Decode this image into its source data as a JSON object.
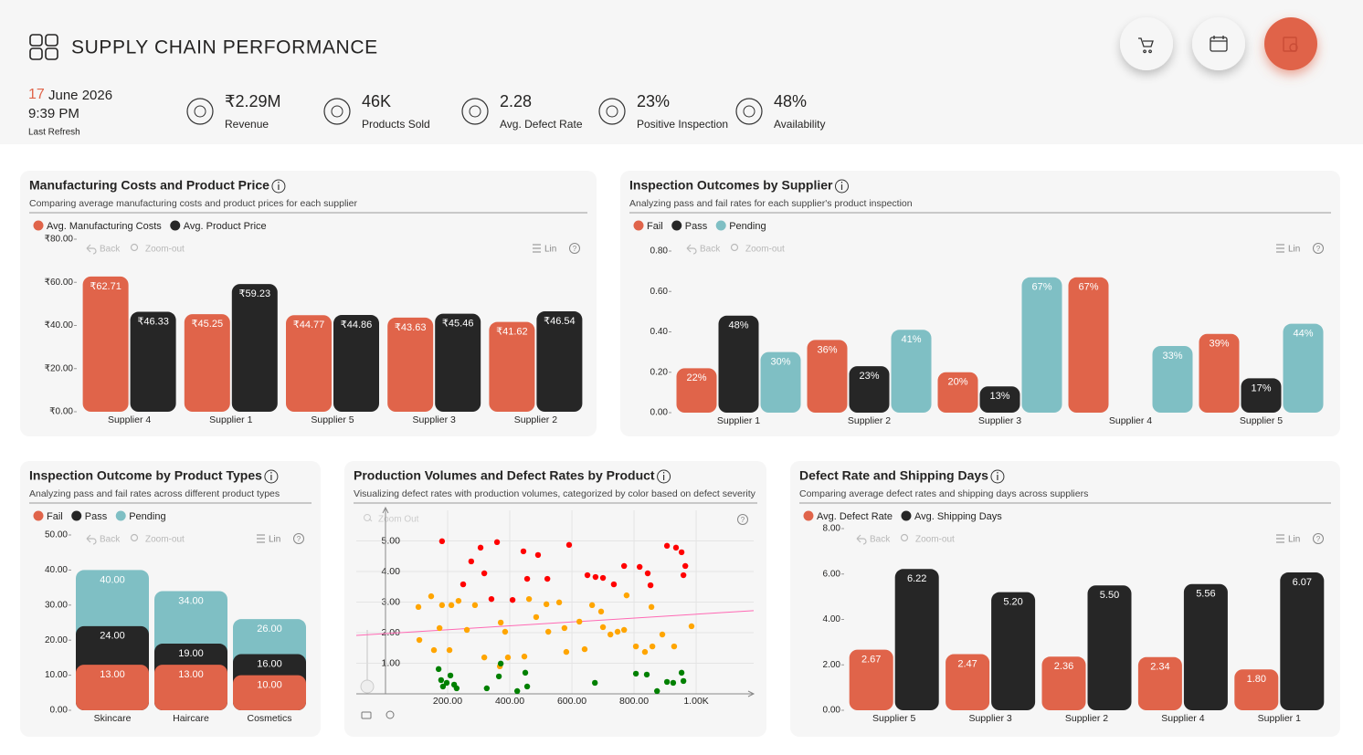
{
  "header": {
    "title": "SUPPLY CHAIN PERFORMANCE",
    "day": "17",
    "month_year": "June 2026",
    "time": "9:39 PM",
    "refresh_label": "Last Refresh"
  },
  "kpis": [
    {
      "value": "₹2.29M",
      "label": "Revenue"
    },
    {
      "value": "46K",
      "label": "Products Sold"
    },
    {
      "value": "2.28",
      "label": "Avg. Defect Rate"
    },
    {
      "value": "23%",
      "label": "Positive Inspection"
    },
    {
      "value": "48%",
      "label": "Availability"
    }
  ],
  "toolbar": {
    "back": "Back",
    "zoom_out": "Zoom-out",
    "lin": "Lin",
    "help": "?",
    "scatter_zoom_out": "Zoom Out"
  },
  "chart_data": [
    {
      "type": "bar",
      "title": "Manufacturing Costs and Product Price",
      "subtitle": "Comparing average manufacturing costs and product prices for each supplier",
      "categories": [
        "Supplier 4",
        "Supplier 1",
        "Supplier 5",
        "Supplier 3",
        "Supplier 2"
      ],
      "series": [
        {
          "name": "Avg. Manufacturing Costs",
          "color": "#e0644a",
          "values": [
            62.71,
            45.25,
            44.77,
            43.63,
            41.62
          ],
          "value_labels": [
            "₹62.71",
            "₹45.25",
            "₹44.77",
            "₹43.63",
            "₹41.62"
          ]
        },
        {
          "name": "Avg. Product Price",
          "color": "#262626",
          "values": [
            46.33,
            59.23,
            44.86,
            45.46,
            46.54
          ],
          "value_labels": [
            "₹46.33",
            "₹59.23",
            "₹44.86",
            "₹45.46",
            "₹46.54"
          ]
        }
      ],
      "ylim": [
        0,
        80
      ],
      "yticks": [
        {
          "value": 0,
          "label": "₹0.00"
        },
        {
          "value": 20,
          "label": "₹20.00"
        },
        {
          "value": 40,
          "label": "₹40.00"
        },
        {
          "value": 60,
          "label": "₹60.00"
        },
        {
          "value": 80,
          "label": "₹80.00"
        }
      ],
      "legend": "top-left"
    },
    {
      "type": "bar",
      "title": "Inspection Outcomes by Supplier",
      "subtitle": "Analyzing pass and fail rates for each supplier's product inspection",
      "categories": [
        "Supplier 1",
        "Supplier 2",
        "Supplier 3",
        "Supplier 4",
        "Supplier 5"
      ],
      "series": [
        {
          "name": "Fail",
          "color": "#e0644a",
          "values": [
            0.22,
            0.36,
            0.2,
            0.67,
            0.39
          ],
          "value_labels": [
            "22%",
            "36%",
            "20%",
            "67%",
            "39%"
          ]
        },
        {
          "name": "Pass",
          "color": "#262626",
          "values": [
            0.48,
            0.23,
            0.13,
            null,
            0.17
          ],
          "value_labels": [
            "48%",
            "23%",
            "13%",
            null,
            "17%"
          ]
        },
        {
          "name": "Pending",
          "color": "#7fbfc4",
          "values": [
            0.3,
            0.41,
            0.67,
            0.33,
            0.44
          ],
          "value_labels": [
            "30%",
            "41%",
            "67%",
            "33%",
            "44%"
          ]
        }
      ],
      "ylim": [
        0,
        0.8
      ],
      "yticks": [
        {
          "value": 0,
          "label": "0.00"
        },
        {
          "value": 0.2,
          "label": "0.20"
        },
        {
          "value": 0.4,
          "label": "0.40"
        },
        {
          "value": 0.6,
          "label": "0.60"
        },
        {
          "value": 0.8,
          "label": "0.80"
        }
      ],
      "legend": "top-left"
    },
    {
      "type": "overlap_bar",
      "title": "Inspection Outcome by Product Types",
      "subtitle": "Analyzing pass and fail rates across different product types",
      "categories": [
        "Skincare",
        "Haircare",
        "Cosmetics"
      ],
      "series": [
        {
          "name": "Fail",
          "color": "#e0644a",
          "values": [
            13,
            13,
            10
          ],
          "value_labels": [
            "13.00",
            "13.00",
            "10.00"
          ]
        },
        {
          "name": "Pass",
          "color": "#262626",
          "values": [
            24,
            19,
            16
          ],
          "value_labels": [
            "24.00",
            "19.00",
            "16.00"
          ]
        },
        {
          "name": "Pending",
          "color": "#7fbfc4",
          "values": [
            40,
            34,
            26
          ],
          "value_labels": [
            "40.00",
            "34.00",
            "26.00"
          ]
        }
      ],
      "ylim": [
        0,
        50
      ],
      "yticks": [
        {
          "value": 0,
          "label": "0.00"
        },
        {
          "value": 10,
          "label": "10.00"
        },
        {
          "value": 20,
          "label": "20.00"
        },
        {
          "value": 30,
          "label": "30.00"
        },
        {
          "value": 40,
          "label": "40.00"
        },
        {
          "value": 50,
          "label": "50.00"
        }
      ],
      "legend": "top-left"
    },
    {
      "type": "scatter",
      "title": "Production Volumes and Defect Rates by Product",
      "subtitle": "Visualizing defect rates with production volumes, categorized by color based on defect severity",
      "series": [
        {
          "color": "#ff0000",
          "x": [
            182,
            306,
            359,
            444,
            491,
            591,
            250,
            318,
            456,
            521,
            341,
            409,
            650,
            676,
            700,
            735,
            818,
            844,
            853,
            906,
            935,
            953,
            965,
            959,
            276,
            768
          ],
          "y": [
            4.99,
            4.78,
            4.96,
            4.66,
            4.54,
            4.87,
            3.58,
            3.94,
            3.76,
            3.76,
            3.1,
            3.07,
            3.88,
            3.82,
            3.79,
            3.58,
            4.15,
            3.94,
            3.55,
            4.84,
            4.78,
            4.63,
            4.18,
            3.88,
            4.33,
            4.18
          ]
        },
        {
          "color": "#ffa500",
          "x": [
            106,
            147,
            182,
            212,
            288,
            174,
            262,
            109,
            156,
            206,
            371,
            385,
            394,
            447,
            368,
            462,
            485,
            518,
            559,
            576,
            582,
            641,
            624,
            694,
            700,
            724,
            747,
            768,
            776,
            806,
            835,
            859,
            929,
            985,
            856,
            891,
            524,
            665,
            235,
            318
          ],
          "y": [
            2.84,
            3.19,
            2.9,
            2.9,
            2.9,
            2.15,
            2.09,
            1.76,
            1.43,
            1.43,
            2.33,
            2.03,
            1.19,
            1.22,
            0.9,
            3.1,
            2.51,
            2.93,
            2.99,
            2.15,
            1.37,
            1.46,
            2.36,
            2.69,
            2.18,
            1.94,
            2.03,
            2.09,
            3.22,
            1.55,
            1.37,
            1.55,
            1.55,
            2.21,
            2.84,
            1.94,
            2.03,
            2.9,
            3.04,
            1.19
          ]
        },
        {
          "color": "#008000",
          "x": [
            171,
            179,
            197,
            209,
            229,
            185,
            221,
            326,
            365,
            371,
            450,
            456,
            424,
            674,
            806,
            841,
            906,
            926,
            953,
            959,
            874
          ],
          "y": [
            0.81,
            0.45,
            0.36,
            0.6,
            0.18,
            0.24,
            0.3,
            0.18,
            0.57,
            0.99,
            0.69,
            0.24,
            0.09,
            0.36,
            0.66,
            0.63,
            0.39,
            0.36,
            0.69,
            0.42,
            0.09
          ]
        }
      ],
      "trend": {
        "color": "#ff69b4",
        "x": [
          -94,
          1185
        ],
        "y": [
          1.91,
          2.72
        ]
      },
      "xlim": [
        -94,
        1185
      ],
      "xticks": [
        {
          "value": 200,
          "label": "200.00"
        },
        {
          "value": 400,
          "label": "400.00"
        },
        {
          "value": 600,
          "label": "600.00"
        },
        {
          "value": 800,
          "label": "800.00"
        },
        {
          "value": 1000,
          "label": "1.00K"
        }
      ],
      "ylim": [
        0,
        6
      ],
      "yticks": [
        {
          "value": 1,
          "label": "1.00"
        },
        {
          "value": 2,
          "label": "2.00"
        },
        {
          "value": 3,
          "label": "3.00"
        },
        {
          "value": 4,
          "label": "4.00"
        },
        {
          "value": 5,
          "label": "5.00"
        }
      ],
      "grid": true
    },
    {
      "type": "bar",
      "title": "Defect Rate and Shipping Days",
      "subtitle": "Comparing average defect rates and shipping days across suppliers",
      "categories": [
        "Supplier 5",
        "Supplier 3",
        "Supplier 2",
        "Supplier 4",
        "Supplier 1"
      ],
      "series": [
        {
          "name": "Avg. Defect Rate",
          "color": "#e0644a",
          "values": [
            2.67,
            2.47,
            2.36,
            2.34,
            1.8
          ],
          "value_labels": [
            "2.67",
            "2.47",
            "2.36",
            "2.34",
            "1.80"
          ]
        },
        {
          "name": "Avg. Shipping Days",
          "color": "#262626",
          "values": [
            6.22,
            5.2,
            5.5,
            5.56,
            6.07
          ],
          "value_labels": [
            "6.22",
            "5.20",
            "5.50",
            "5.56",
            "6.07"
          ]
        }
      ],
      "ylim": [
        0,
        8
      ],
      "yticks": [
        {
          "value": 0,
          "label": "0.00"
        },
        {
          "value": 2,
          "label": "2.00"
        },
        {
          "value": 4,
          "label": "4.00"
        },
        {
          "value": 6,
          "label": "6.00"
        },
        {
          "value": 8,
          "label": "8.00"
        }
      ],
      "legend": "top-left"
    }
  ]
}
